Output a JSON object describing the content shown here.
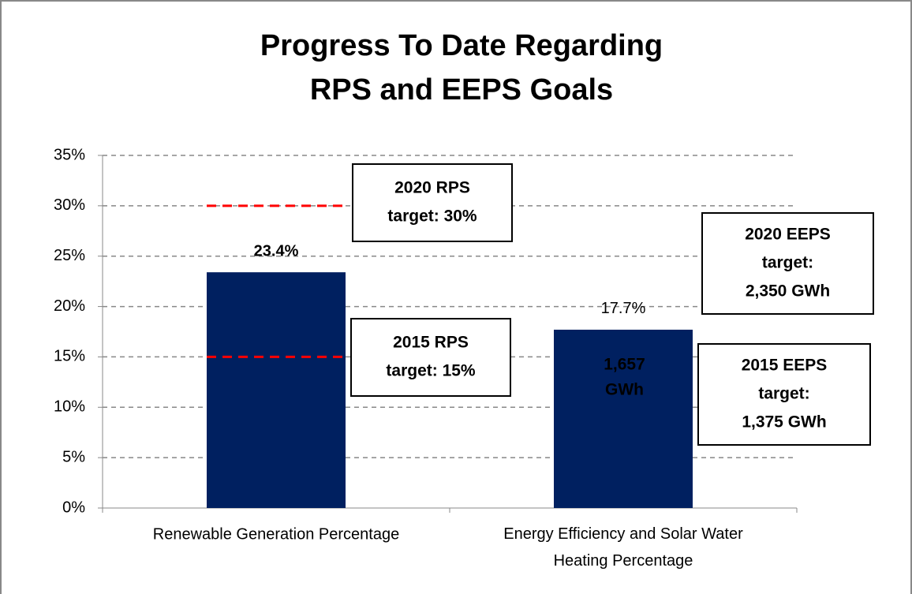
{
  "chart_data": {
    "type": "bar",
    "title": [
      "Progress To Date Regarding",
      "RPS and EEPS Goals"
    ],
    "categories": [
      "Renewable Generation Percentage",
      "Energy Efficiency and Solar Water Heating Percentage"
    ],
    "values": [
      23.4,
      17.7
    ],
    "value_labels": [
      "23.4%",
      "17.7%"
    ],
    "color": "#002060",
    "ylim": [
      0,
      35
    ],
    "yticks": [
      {
        "value": 0,
        "label": "0%"
      },
      {
        "value": 5,
        "label": "5%"
      },
      {
        "value": 10,
        "label": "10%"
      },
      {
        "value": 15,
        "label": "15%"
      },
      {
        "value": 20,
        "label": "20%"
      },
      {
        "value": 25,
        "label": "25%"
      },
      {
        "value": 30,
        "label": "30%"
      },
      {
        "value": 35,
        "label": "35%"
      }
    ],
    "grid": true,
    "target_lines": [
      {
        "value": 30,
        "color": "#ff0000"
      },
      {
        "value": 15,
        "color": "#ff0000"
      }
    ],
    "annotations": [
      {
        "lines": [
          "2020 RPS",
          "target: 30%"
        ]
      },
      {
        "lines": [
          "2015 RPS",
          "target: 15%"
        ]
      },
      {
        "lines": [
          "2020 EEPS",
          "target:",
          "2,350 GWh"
        ]
      },
      {
        "lines": [
          "2015 EEPS",
          "target:",
          "1,375 GWh"
        ]
      },
      {
        "lines": [
          "1,657",
          "GWh"
        ]
      }
    ]
  }
}
